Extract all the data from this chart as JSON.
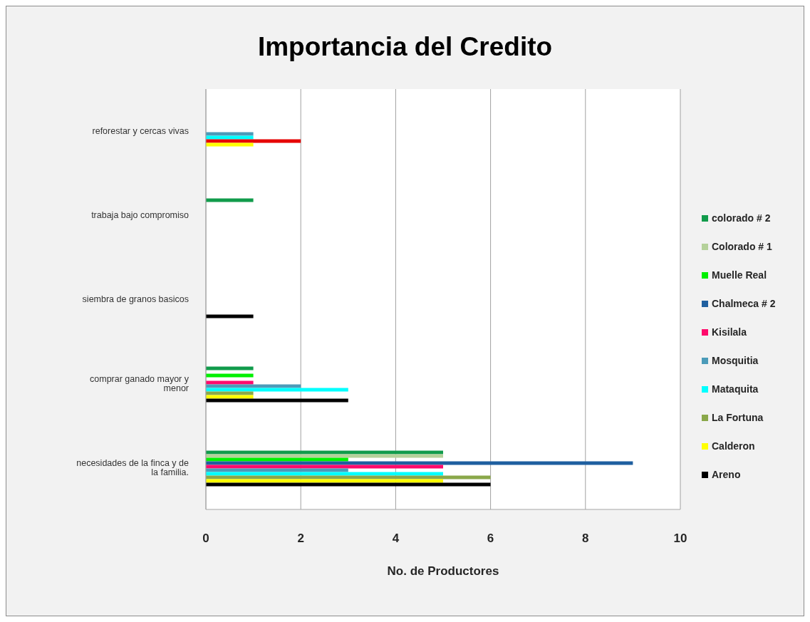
{
  "chart_data": {
    "type": "bar",
    "orientation": "horizontal",
    "title": "Importancia del Credito",
    "xlabel": "No. de Productores",
    "categories": [
      "reforestar y cercas vivas",
      "trabaja bajo compromiso",
      "siembra de granos basicos",
      "comprar ganado mayor y menor",
      "necesidades de la finca y de la familia."
    ],
    "series": [
      {
        "name": "colorado # 2",
        "color": "#119b4b",
        "values": [
          null,
          1,
          null,
          1,
          5
        ]
      },
      {
        "name": "Colorado # 1",
        "color": "#b5d19a",
        "values": [
          null,
          null,
          null,
          null,
          5
        ]
      },
      {
        "name": "Muelle Real",
        "color": "#00f000",
        "values": [
          null,
          null,
          null,
          1,
          3
        ]
      },
      {
        "name": "Chalmeca # 2",
        "color": "#1f5f9f",
        "values": [
          null,
          null,
          null,
          null,
          9
        ]
      },
      {
        "name": "Kisilala",
        "color": "#ff0a6c",
        "values": [
          null,
          null,
          null,
          1,
          5
        ]
      },
      {
        "name": "Mosquitia",
        "color": "#4b9bb9",
        "values": [
          1,
          null,
          null,
          2,
          3
        ]
      },
      {
        "name": "Mataquita",
        "color": "#00ffff",
        "values": [
          1,
          null,
          null,
          3,
          5
        ]
      },
      {
        "name": "La Fortuna",
        "color": "#8aa84a",
        "colors": [
          "#e60000",
          "#8aa84a",
          "#8aa84a",
          "#8aa84a",
          "#8aa84a"
        ],
        "values": [
          2,
          null,
          null,
          1,
          6
        ]
      },
      {
        "name": "Calderon",
        "color": "#ffff00",
        "values": [
          1,
          null,
          null,
          1,
          5
        ]
      },
      {
        "name": "Areno",
        "color": "#000000",
        "values": [
          null,
          null,
          1,
          3,
          6
        ]
      }
    ],
    "xlim": [
      0,
      10
    ],
    "xticks": [
      0,
      2,
      4,
      6,
      8,
      10
    ],
    "grid": "x",
    "legend": "right"
  }
}
